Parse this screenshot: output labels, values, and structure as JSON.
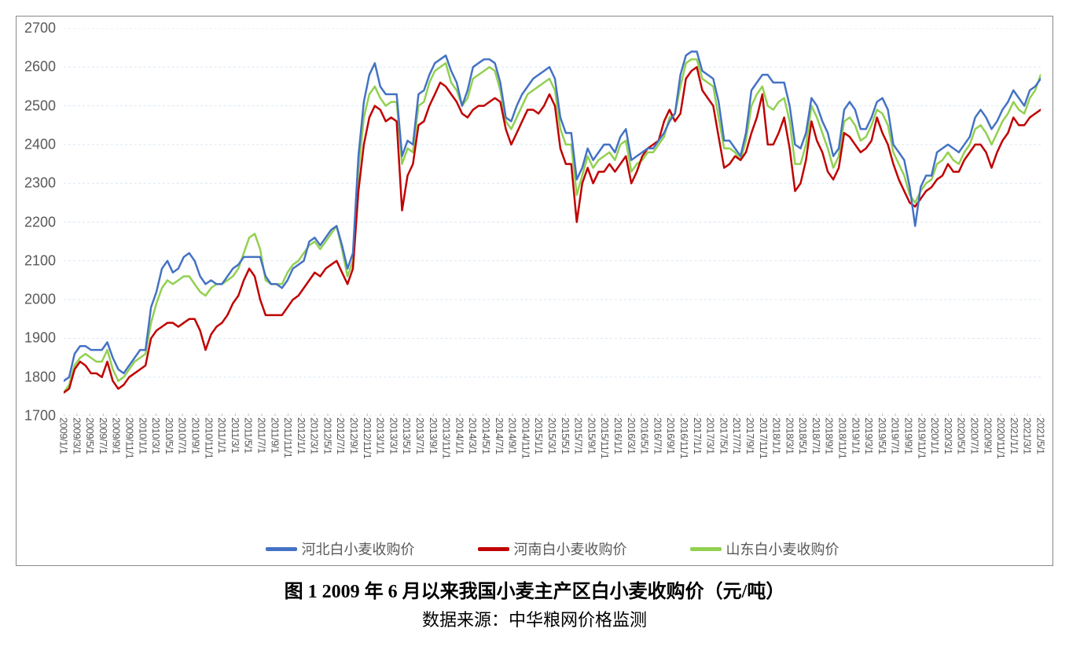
{
  "chart": {
    "type": "line",
    "border_color": "#888888",
    "background_color": "#ffffff",
    "grid_color": "#d9e6f2",
    "plot_bg": "#ffffff",
    "ylim": [
      1700,
      2700
    ],
    "ytick_step": 100,
    "yticks": [
      1700,
      1800,
      1900,
      2000,
      2100,
      2200,
      2300,
      2400,
      2500,
      2600,
      2700
    ],
    "y_fontsize": 18,
    "x_fontsize": 13,
    "x_label_color": "#595959",
    "line_width": 2.5,
    "x_dates": [
      "2009/1/1",
      "2009/3/1",
      "2009/5/1",
      "2009/7/1",
      "2009/9/1",
      "2009/11/1",
      "2010/1/1",
      "2010/3/1",
      "2010/5/1",
      "2010/7/1",
      "2010/9/1",
      "2010/11/1",
      "2011/1/1",
      "2011/3/1",
      "2011/5/1",
      "2011/7/1",
      "2011/9/1",
      "2011/11/1",
      "2012/1/1",
      "2012/3/1",
      "2012/5/1",
      "2012/7/1",
      "2012/9/1",
      "2012/11/1",
      "2013/1/1",
      "2013/3/1",
      "2013/5/1",
      "2013/7/1",
      "2013/9/1",
      "2013/11/1",
      "2014/1/1",
      "2014/3/1",
      "2014/5/1",
      "2014/7/1",
      "2014/9/1",
      "2014/11/1",
      "2015/1/1",
      "2015/3/1",
      "2015/5/1",
      "2015/7/1",
      "2015/9/1",
      "2015/11/1",
      "2016/1/1",
      "2016/3/1",
      "2016/5/1",
      "2016/7/1",
      "2016/9/1",
      "2016/11/1",
      "2017/1/1",
      "2017/3/1",
      "2017/5/1",
      "2017/7/1",
      "2017/9/1",
      "2017/11/1",
      "2018/1/1",
      "2018/3/1",
      "2018/5/1",
      "2018/7/1",
      "2018/9/1",
      "2018/11/1",
      "2019/1/1",
      "2019/3/1",
      "2019/5/1",
      "2019/7/1",
      "2019/9/1",
      "2019/11/1",
      "2020/1/1",
      "2020/3/1",
      "2020/5/1",
      "2020/7/1",
      "2020/9/1",
      "2020/11/1",
      "2021/1/1",
      "2021/3/1",
      "2021/5/1"
    ],
    "series": [
      {
        "name": "河北白小麦收购价",
        "color": "#4472c4",
        "data": [
          1790,
          1800,
          1860,
          1880,
          1880,
          1870,
          1870,
          1870,
          1890,
          1850,
          1820,
          1810,
          1830,
          1850,
          1870,
          1870,
          1980,
          2020,
          2080,
          2100,
          2070,
          2080,
          2110,
          2120,
          2100,
          2060,
          2040,
          2050,
          2040,
          2040,
          2060,
          2080,
          2090,
          2110,
          2110,
          2110,
          2110,
          2060,
          2040,
          2040,
          2030,
          2050,
          2080,
          2090,
          2100,
          2150,
          2160,
          2140,
          2160,
          2180,
          2190,
          2140,
          2080,
          2120,
          2370,
          2510,
          2580,
          2610,
          2550,
          2530,
          2530,
          2530,
          2370,
          2410,
          2400,
          2530,
          2540,
          2580,
          2610,
          2620,
          2630,
          2590,
          2560,
          2500,
          2540,
          2600,
          2610,
          2620,
          2620,
          2610,
          2560,
          2470,
          2460,
          2500,
          2530,
          2550,
          2570,
          2580,
          2590,
          2600,
          2570,
          2470,
          2430,
          2430,
          2310,
          2340,
          2390,
          2360,
          2380,
          2400,
          2400,
          2380,
          2420,
          2440,
          2360,
          2370,
          2380,
          2390,
          2390,
          2410,
          2430,
          2460,
          2480,
          2580,
          2630,
          2640,
          2640,
          2590,
          2580,
          2570,
          2510,
          2410,
          2410,
          2390,
          2370,
          2430,
          2540,
          2560,
          2580,
          2580,
          2560,
          2560,
          2560,
          2500,
          2400,
          2390,
          2430,
          2520,
          2500,
          2460,
          2430,
          2370,
          2390,
          2490,
          2510,
          2490,
          2440,
          2440,
          2470,
          2510,
          2520,
          2490,
          2400,
          2380,
          2360,
          2290,
          2190,
          2290,
          2320,
          2320,
          2380,
          2390,
          2400,
          2390,
          2380,
          2400,
          2420,
          2470,
          2490,
          2470,
          2440,
          2460,
          2490,
          2510,
          2540,
          2520,
          2500,
          2540,
          2550,
          2570
        ]
      },
      {
        "name": "河南白小麦收购价",
        "color": "#c00000",
        "data": [
          1760,
          1770,
          1820,
          1840,
          1830,
          1810,
          1810,
          1800,
          1840,
          1790,
          1770,
          1780,
          1800,
          1810,
          1820,
          1830,
          1900,
          1920,
          1930,
          1940,
          1940,
          1930,
          1940,
          1950,
          1950,
          1920,
          1870,
          1910,
          1930,
          1940,
          1960,
          1990,
          2010,
          2050,
          2080,
          2060,
          2000,
          1960,
          1960,
          1960,
          1960,
          1980,
          2000,
          2010,
          2030,
          2050,
          2070,
          2060,
          2080,
          2090,
          2100,
          2070,
          2040,
          2080,
          2280,
          2400,
          2470,
          2500,
          2490,
          2460,
          2470,
          2460,
          2230,
          2320,
          2350,
          2450,
          2460,
          2500,
          2530,
          2560,
          2550,
          2530,
          2510,
          2480,
          2470,
          2490,
          2500,
          2500,
          2510,
          2520,
          2510,
          2440,
          2400,
          2430,
          2460,
          2490,
          2490,
          2480,
          2500,
          2530,
          2500,
          2390,
          2350,
          2350,
          2200,
          2300,
          2340,
          2300,
          2330,
          2330,
          2350,
          2330,
          2350,
          2370,
          2300,
          2330,
          2370,
          2390,
          2400,
          2410,
          2460,
          2490,
          2460,
          2480,
          2570,
          2590,
          2600,
          2540,
          2520,
          2500,
          2420,
          2340,
          2350,
          2370,
          2360,
          2380,
          2430,
          2470,
          2530,
          2400,
          2400,
          2430,
          2470,
          2390,
          2280,
          2300,
          2360,
          2460,
          2410,
          2380,
          2330,
          2310,
          2340,
          2430,
          2420,
          2400,
          2380,
          2390,
          2410,
          2470,
          2430,
          2400,
          2350,
          2310,
          2280,
          2250,
          2240,
          2260,
          2280,
          2290,
          2310,
          2320,
          2350,
          2330,
          2330,
          2360,
          2380,
          2400,
          2400,
          2380,
          2340,
          2380,
          2410,
          2430,
          2470,
          2450,
          2450,
          2470,
          2480,
          2490
        ]
      },
      {
        "name": "山东白小麦收购价",
        "color": "#92d050",
        "data": [
          1760,
          1780,
          1830,
          1850,
          1860,
          1850,
          1840,
          1840,
          1870,
          1820,
          1790,
          1800,
          1820,
          1840,
          1850,
          1860,
          1940,
          1990,
          2030,
          2050,
          2040,
          2050,
          2060,
          2060,
          2040,
          2020,
          2010,
          2030,
          2040,
          2040,
          2050,
          2060,
          2080,
          2120,
          2160,
          2170,
          2130,
          2050,
          2040,
          2040,
          2040,
          2070,
          2090,
          2100,
          2120,
          2140,
          2150,
          2130,
          2150,
          2170,
          2190,
          2130,
          2060,
          2100,
          2330,
          2470,
          2530,
          2550,
          2520,
          2500,
          2510,
          2510,
          2350,
          2390,
          2380,
          2500,
          2510,
          2560,
          2590,
          2600,
          2610,
          2560,
          2540,
          2500,
          2520,
          2570,
          2580,
          2590,
          2600,
          2590,
          2540,
          2460,
          2440,
          2470,
          2500,
          2530,
          2540,
          2550,
          2560,
          2570,
          2540,
          2440,
          2400,
          2400,
          2270,
          2320,
          2370,
          2340,
          2360,
          2370,
          2380,
          2360,
          2400,
          2410,
          2330,
          2350,
          2360,
          2380,
          2380,
          2400,
          2420,
          2470,
          2480,
          2550,
          2610,
          2620,
          2620,
          2570,
          2560,
          2550,
          2470,
          2390,
          2390,
          2380,
          2360,
          2410,
          2500,
          2530,
          2550,
          2500,
          2490,
          2510,
          2520,
          2460,
          2350,
          2350,
          2400,
          2500,
          2470,
          2430,
          2390,
          2340,
          2370,
          2460,
          2470,
          2450,
          2410,
          2420,
          2450,
          2490,
          2480,
          2450,
          2380,
          2350,
          2320,
          2270,
          2250,
          2280,
          2300,
          2310,
          2350,
          2360,
          2380,
          2360,
          2350,
          2380,
          2400,
          2440,
          2450,
          2430,
          2400,
          2430,
          2460,
          2480,
          2510,
          2490,
          2480,
          2520,
          2540,
          2580
        ]
      }
    ],
    "legend": {
      "position": "bottom",
      "fontsize": 18,
      "swatch_width": 40,
      "swatch_height": 5,
      "text_color": "#595959"
    }
  },
  "caption": {
    "title": "图 1   2009 年 6 月以来我国小麦主产区白小麦收购价（元/吨）",
    "title_fontsize": 24,
    "title_fontweight": "bold",
    "source": "数据来源：中华粮网价格监测",
    "source_fontsize": 22
  }
}
